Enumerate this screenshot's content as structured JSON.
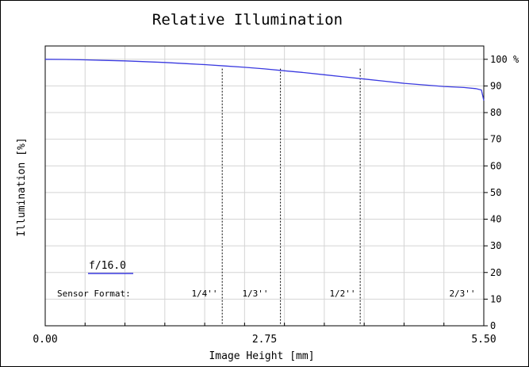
{
  "chart_data": {
    "type": "line",
    "title": "Relative Illumination",
    "xlabel": "Image Height [mm]",
    "ylabel": "Illumination [%]",
    "xlim": [
      0,
      5.5
    ],
    "ylim": [
      0,
      105
    ],
    "x_ticks": [
      {
        "value": 0,
        "label": "0.00"
      },
      {
        "value": 2.75,
        "label": "2.75"
      },
      {
        "value": 5.5,
        "label": "5.50"
      }
    ],
    "y_ticks": [
      0,
      10,
      20,
      30,
      40,
      50,
      60,
      70,
      80,
      90,
      100
    ],
    "y_unit_label": "%",
    "grid": true,
    "line_color": "#3a3ae0",
    "series": [
      {
        "name": "f/16.0",
        "x": [
          0,
          0.25,
          0.5,
          0.75,
          1.0,
          1.25,
          1.5,
          1.75,
          2.0,
          2.25,
          2.5,
          2.75,
          3.0,
          3.25,
          3.5,
          3.75,
          4.0,
          4.25,
          4.5,
          4.75,
          5.0,
          5.25,
          5.4,
          5.47,
          5.5
        ],
        "values": [
          100,
          99.95,
          99.8,
          99.6,
          99.4,
          99.1,
          98.8,
          98.4,
          98.0,
          97.5,
          97.0,
          96.4,
          95.7,
          95.0,
          94.2,
          93.4,
          92.6,
          91.8,
          91.0,
          90.4,
          89.8,
          89.4,
          89.0,
          88.5,
          84.5
        ]
      }
    ],
    "legend": {
      "label": "f/16.0",
      "placement": "bottom-left"
    },
    "sensor_format": {
      "label": "Sensor Format:",
      "markers": [
        {
          "x": 2.22,
          "label": "1/4''"
        },
        {
          "x": 2.95,
          "label": "1/3''"
        },
        {
          "x": 3.95,
          "label": "1/2''"
        },
        {
          "x": 5.5,
          "label": "2/3''"
        }
      ]
    }
  }
}
